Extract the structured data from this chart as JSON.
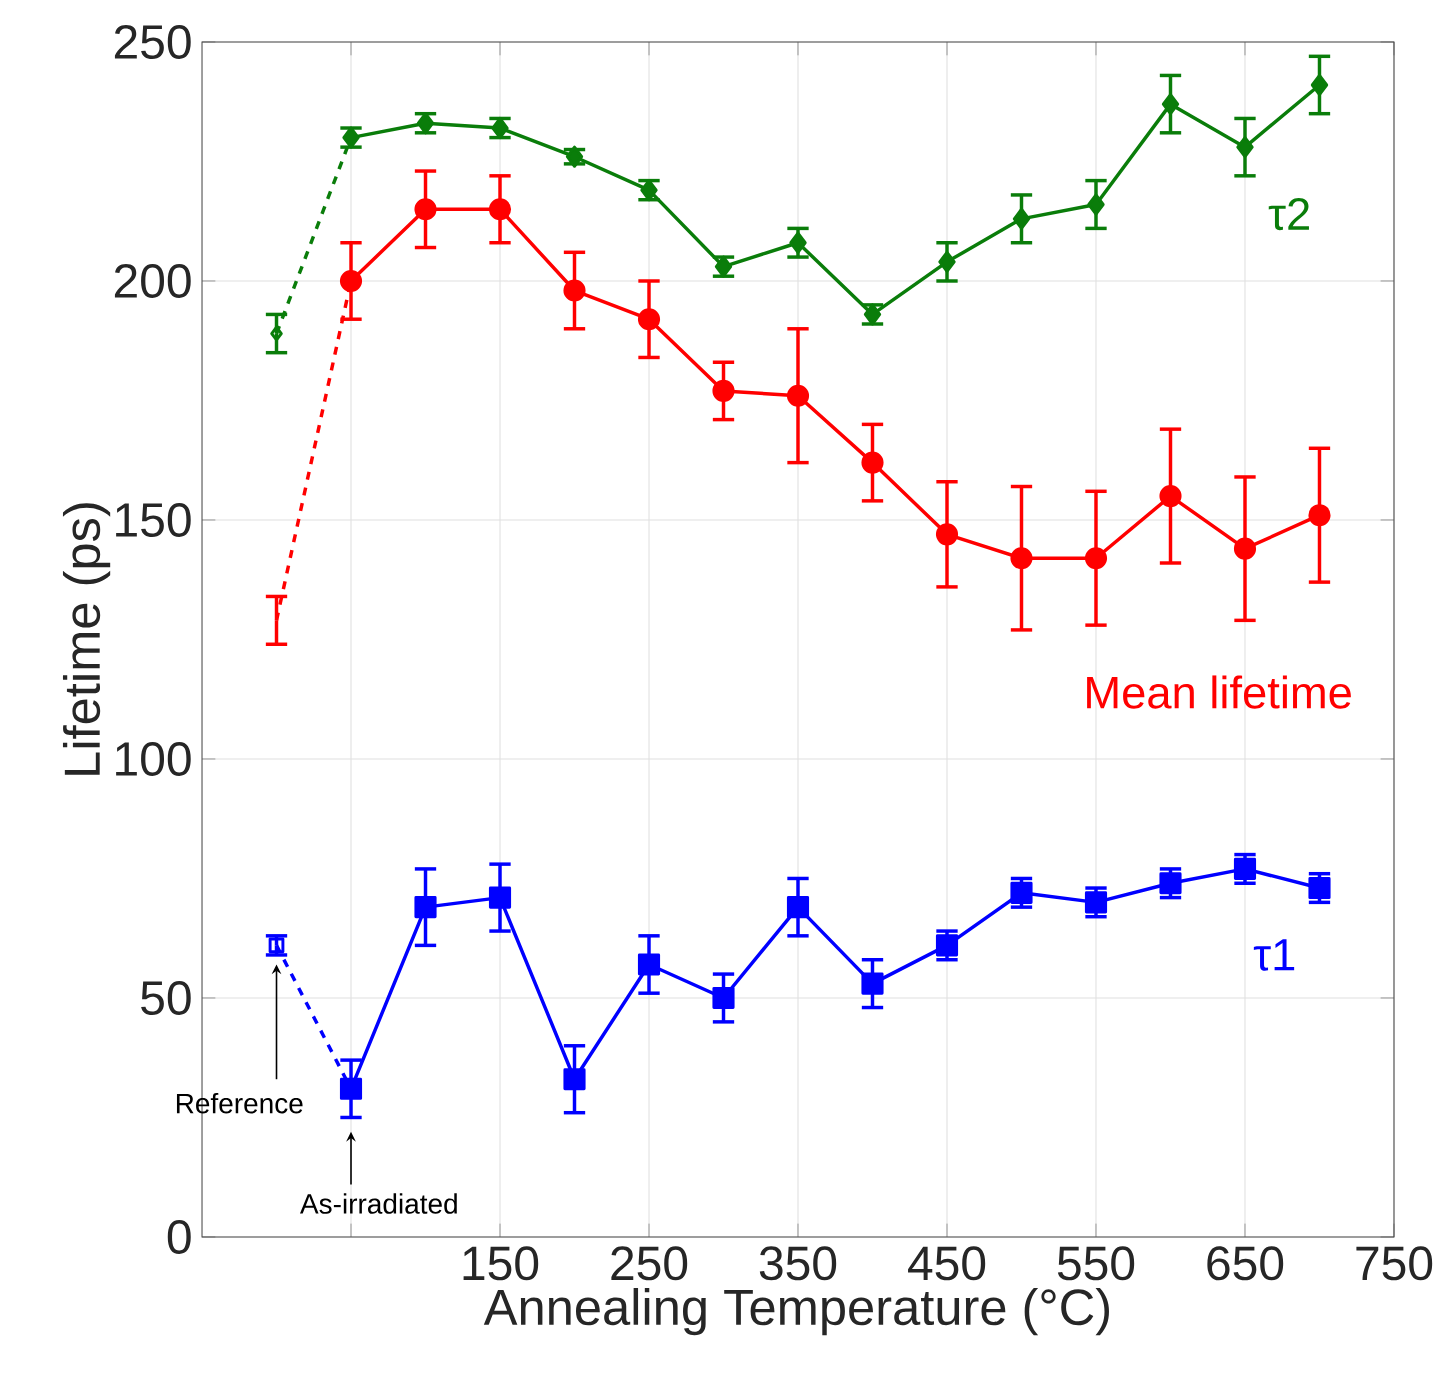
{
  "chart_data": {
    "type": "line",
    "xlabel": "Annealing Temperature (°C)",
    "ylabel": "Lifetime (ps)",
    "xlim": [
      -50,
      750
    ],
    "ylim": [
      0,
      250
    ],
    "xticks": [
      {
        "value": 50,
        "label": null
      },
      150,
      250,
      350,
      450,
      550,
      650,
      750
    ],
    "yticks": [
      0,
      50,
      100,
      150,
      200,
      250
    ],
    "grid": true,
    "series": [
      {
        "color": "#0a7d0a",
        "marker": "diamond",
        "line_style": "dashed",
        "x": [
          0,
          50
        ],
        "values": [
          189,
          230
        ],
        "errors": [
          4,
          null
        ]
      },
      {
        "name": "τ2",
        "color": "#0a7d0a",
        "marker": "diamond",
        "line_style": "solid",
        "x": [
          50,
          100,
          150,
          200,
          250,
          300,
          350,
          400,
          450,
          500,
          550,
          600,
          650,
          700
        ],
        "values": [
          230,
          233,
          232,
          226,
          219,
          203,
          208,
          193,
          204,
          213,
          216,
          237,
          228,
          241
        ],
        "errors": [
          2,
          2,
          2,
          1.5,
          2,
          2,
          3,
          2,
          4,
          5,
          5,
          6,
          6,
          6
        ]
      },
      {
        "color": "#ff0000",
        "marker": "circle",
        "line_style": "dashed",
        "x": [
          0,
          50
        ],
        "values": [
          129,
          200
        ],
        "errors": [
          5,
          null
        ]
      },
      {
        "name": "Mean lifetime",
        "color": "#ff0000",
        "marker": "circle",
        "line_style": "solid",
        "x": [
          50,
          100,
          150,
          200,
          250,
          300,
          350,
          400,
          450,
          500,
          550,
          600,
          650,
          700
        ],
        "values": [
          200,
          215,
          215,
          198,
          192,
          177,
          176,
          162,
          147,
          142,
          142,
          155,
          144,
          151
        ],
        "errors": [
          8,
          8,
          7,
          8,
          8,
          6,
          14,
          8,
          11,
          15,
          14,
          14,
          15,
          14
        ]
      },
      {
        "color": "#0000ff",
        "marker": "square",
        "line_style": "dashed",
        "x": [
          0,
          50
        ],
        "values": [
          61,
          31
        ],
        "errors": [
          2,
          null
        ]
      },
      {
        "name": "τ1",
        "color": "#0000ff",
        "marker": "square",
        "line_style": "solid",
        "x": [
          50,
          100,
          150,
          200,
          250,
          300,
          350,
          400,
          450,
          500,
          550,
          600,
          650,
          700
        ],
        "values": [
          31,
          69,
          71,
          33,
          57,
          50,
          69,
          53,
          61,
          72,
          70,
          74,
          77,
          73
        ],
        "errors": [
          6,
          8,
          7,
          7,
          6,
          5,
          6,
          5,
          3,
          3,
          3,
          3,
          3,
          3
        ]
      }
    ],
    "annotations": [
      "Reference",
      "As-irradiated"
    ]
  }
}
